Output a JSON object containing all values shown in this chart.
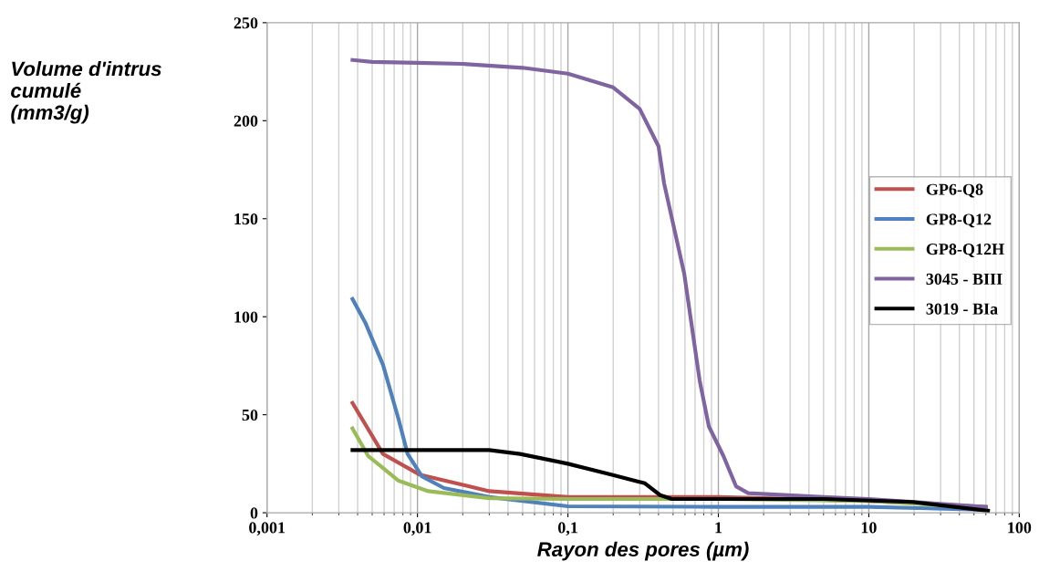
{
  "chart_data": {
    "type": "line",
    "xlabel": "Rayon des pores (µm)",
    "ylabel": "Volume d'intrus\ncumulé\n(mm3/g)",
    "log": "x",
    "grid": "x",
    "legend": "right",
    "marker": "none",
    "line_style": "solid",
    "xlim": [
      0.001,
      100
    ],
    "xticks": [
      {
        "value": 0.001,
        "label": "0,001"
      },
      {
        "value": 0.01,
        "label": "0,01"
      },
      {
        "value": 0.1,
        "label": "0,1"
      },
      1,
      10,
      100
    ],
    "ylim": [
      0,
      250
    ],
    "yticks": [
      0,
      50,
      100,
      150,
      200,
      250
    ],
    "series": [
      {
        "name": "GP6-Q8",
        "color": "#c0504d",
        "x": [
          0.0037,
          0.0059,
          0.0103,
          0.03,
          0.1,
          1,
          10,
          60
        ],
        "values": [
          56,
          30,
          19.5,
          11,
          8,
          8,
          6,
          3
        ]
      },
      {
        "name": "GP8-Q12",
        "color": "#4f81bd",
        "x": [
          0.0037,
          0.0045,
          0.0059,
          0.0075,
          0.0086,
          0.0107,
          0.015,
          0.03,
          0.1,
          1,
          10,
          60
        ],
        "values": [
          109,
          97,
          75.5,
          47.5,
          30,
          18.6,
          12.6,
          8,
          3.3,
          3,
          3,
          1.5
        ]
      },
      {
        "name": "GP8-Q12H",
        "color": "#9bbb59",
        "x": [
          0.0037,
          0.0047,
          0.0075,
          0.0118,
          0.03,
          0.1,
          1,
          10,
          60
        ],
        "values": [
          43,
          29,
          16.3,
          11,
          7.4,
          7,
          7,
          6,
          2.5
        ]
      },
      {
        "name": "3045 - BIII",
        "color": "#8064a2",
        "x": [
          0.0037,
          0.005,
          0.01,
          0.02,
          0.05,
          0.1,
          0.2,
          0.3,
          0.4,
          0.436,
          0.593,
          0.751,
          0.865,
          1.08,
          1.31,
          1.58,
          5,
          10,
          60
        ],
        "values": [
          231,
          230,
          229.5,
          229,
          227,
          224,
          217,
          206,
          187,
          168,
          122,
          67.5,
          44,
          29,
          13.5,
          10,
          8,
          7,
          3
        ]
      },
      {
        "name": "3019 - BIa",
        "color": "#000000",
        "x": [
          0.0037,
          0.03,
          0.048,
          0.1,
          0.194,
          0.29,
          0.325,
          0.41,
          0.49,
          1,
          5,
          19.5,
          62
        ],
        "values": [
          32,
          32,
          30,
          25,
          19.5,
          16,
          15,
          9,
          7,
          7,
          7,
          5.5,
          1
        ]
      }
    ]
  }
}
